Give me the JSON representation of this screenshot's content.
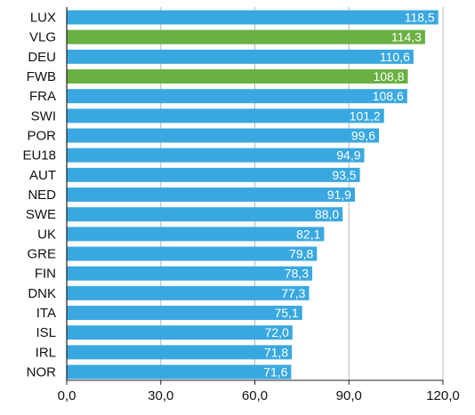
{
  "chart_data": {
    "type": "bar",
    "orientation": "horizontal",
    "categories": [
      "LUX",
      "VLG",
      "DEU",
      "FWB",
      "FRA",
      "SWI",
      "POR",
      "EU18",
      "AUT",
      "NED",
      "SWE",
      "UK",
      "GRE",
      "FIN",
      "DNK",
      "ITA",
      "ISL",
      "IRL",
      "NOR"
    ],
    "values": [
      118.5,
      114.3,
      110.6,
      108.8,
      108.6,
      101.2,
      99.6,
      94.9,
      93.5,
      91.9,
      88.0,
      82.1,
      79.8,
      78.3,
      77.3,
      75.1,
      72.0,
      71.8,
      71.6
    ],
    "value_labels": [
      "118,5",
      "114,3",
      "110,6",
      "108,8",
      "108,6",
      "101,2",
      "99,6",
      "94,9",
      "93,5",
      "91,9",
      "88,0",
      "82,1",
      "79,8",
      "78,3",
      "77,3",
      "75,1",
      "72,0",
      "71,8",
      "71,6"
    ],
    "highlight_categories": [
      "VLG",
      "FWB"
    ],
    "xlim": [
      0,
      120
    ],
    "x_ticks": [
      0,
      30,
      60,
      90,
      120
    ],
    "x_tick_labels": [
      "0,0",
      "30,0",
      "60,0",
      "90,0",
      "120,0"
    ],
    "grid": "vertical",
    "colors": {
      "bar": "#3aa8e0",
      "highlight": "#6ab042",
      "grid": "#b8b8b8",
      "axis": "#222222"
    }
  }
}
